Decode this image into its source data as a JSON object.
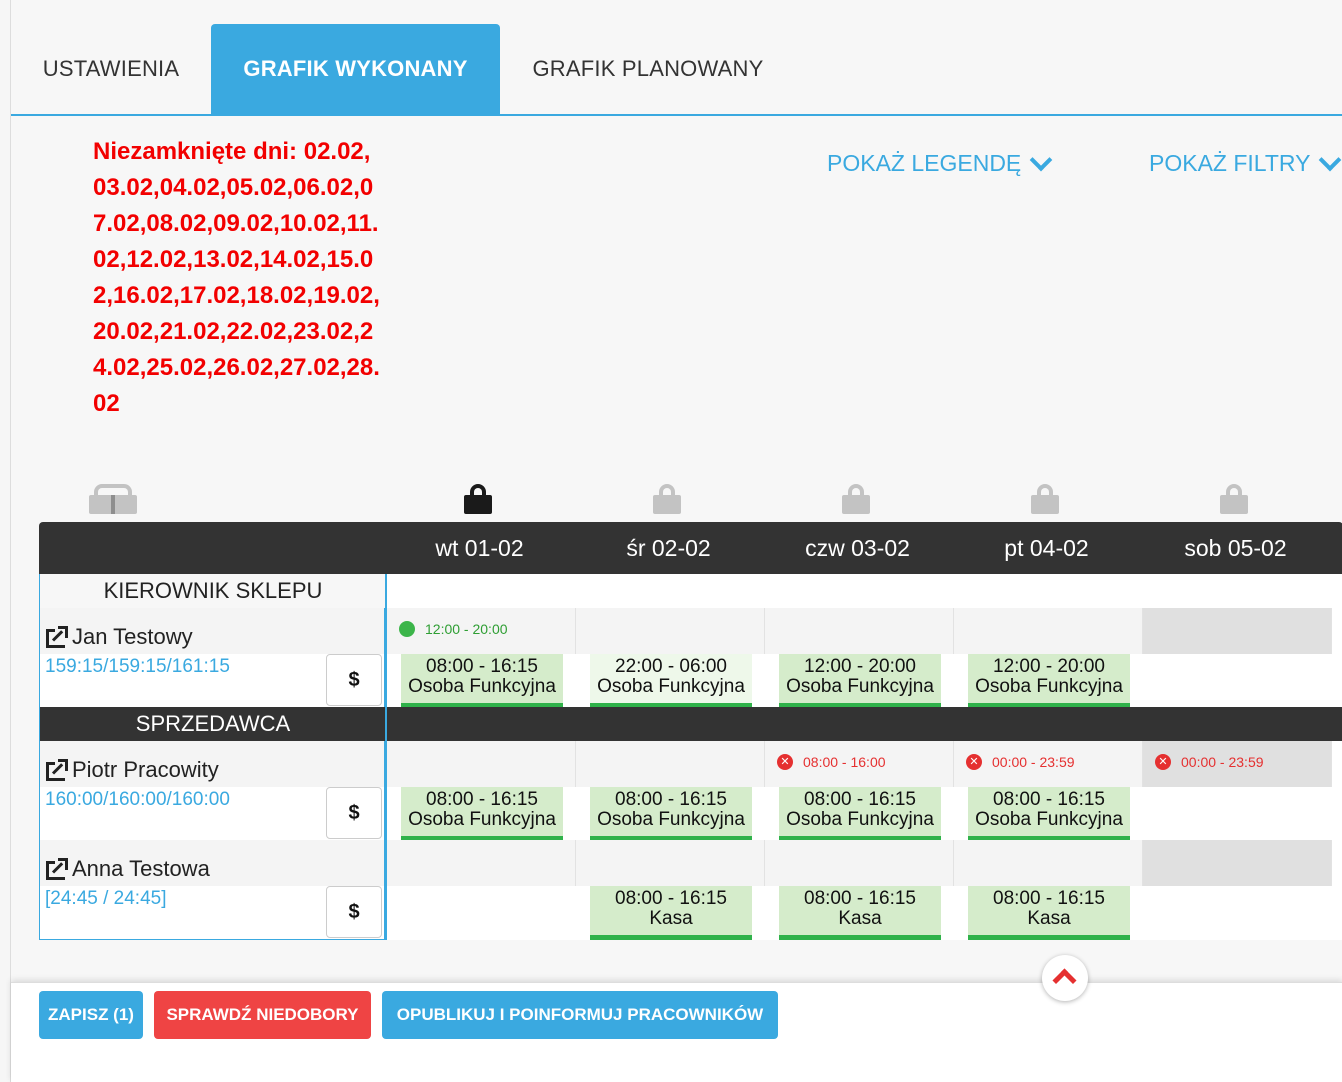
{
  "tabs": [
    {
      "label": "USTAWIENIA",
      "active": false
    },
    {
      "label": "GRAFIK WYKONANY",
      "active": true
    },
    {
      "label": "GRAFIK PLANOWANY",
      "active": false
    }
  ],
  "unclosed_days": "Niezamknięte dni: 02.02,03.02,04.02,05.02,06.02,07.02,08.02,09.02,10.02,11.02,12.02,13.02,14.02,15.02,16.02,17.02,18.02,19.02,20.02,21.02,22.02,23.02,24.02,25.02,26.02,27.02,28.02",
  "toggles": {
    "legend": "POKAŻ LEGENDĘ",
    "filters": "POKAŻ FILTRY"
  },
  "days": [
    {
      "label": "wt 01-02",
      "lock": "dark"
    },
    {
      "label": "śr 02-02",
      "lock": "grey"
    },
    {
      "label": "czw 03-02",
      "lock": "grey"
    },
    {
      "label": "pt 04-02",
      "lock": "grey"
    },
    {
      "label": "sob 05-02",
      "lock": "grey"
    }
  ],
  "groups": {
    "g1": "KIEROWNIK SKLEPU",
    "g2": "SPRZEDAWCA"
  },
  "employees": [
    {
      "name": "Jan Testowy",
      "hours": "159:15/159:15/161:15",
      "dollar": "$",
      "availability": [
        {
          "status": "ok",
          "text": "12:00 - 20:00"
        },
        null,
        null,
        null,
        null
      ],
      "shifts": [
        {
          "time": "08:00 - 16:15",
          "role": "Osoba Funkcyjna"
        },
        {
          "time": "22:00 - 06:00",
          "role": "Osoba Funkcyjna"
        },
        {
          "time": "12:00 - 20:00",
          "role": "Osoba Funkcyjna"
        },
        {
          "time": "12:00 - 20:00",
          "role": "Osoba Funkcyjna"
        },
        null
      ]
    },
    {
      "name": "Piotr Pracowity",
      "hours": "160:00/160:00/160:00",
      "dollar": "$",
      "availability": [
        null,
        null,
        {
          "status": "no",
          "text": "08:00 - 16:00"
        },
        {
          "status": "no",
          "text": "00:00 - 23:59"
        },
        {
          "status": "no",
          "text": "00:00 - 23:59"
        }
      ],
      "shifts": [
        {
          "time": "08:00 - 16:15",
          "role": "Osoba Funkcyjna"
        },
        {
          "time": "08:00 - 16:15",
          "role": "Osoba Funkcyjna"
        },
        {
          "time": "08:00 - 16:15",
          "role": "Osoba Funkcyjna"
        },
        {
          "time": "08:00 - 16:15",
          "role": "Osoba Funkcyjna"
        },
        null
      ]
    },
    {
      "name": "Anna Testowa",
      "hours": "[24:45 / 24:45]",
      "dollar": "$",
      "availability": [
        null,
        null,
        null,
        null,
        null
      ],
      "shifts": [
        null,
        {
          "time": "08:00 - 16:15",
          "role": "Kasa"
        },
        {
          "time": "08:00 - 16:15",
          "role": "Kasa"
        },
        {
          "time": "08:00 - 16:15",
          "role": "Kasa"
        },
        null
      ]
    }
  ],
  "buttons": {
    "save": "ZAPISZ (1)",
    "check": "SPRAWDŹ NIEDOBORY",
    "publish": "OPUBLIKUJ I POINFORMUJ PRACOWNIKÓW"
  },
  "colors": {
    "accent": "#3aa9e0",
    "danger": "#ef4444",
    "shift_bg": "#d5eccb",
    "shift_bar": "#2fb24a",
    "header": "#333333"
  }
}
